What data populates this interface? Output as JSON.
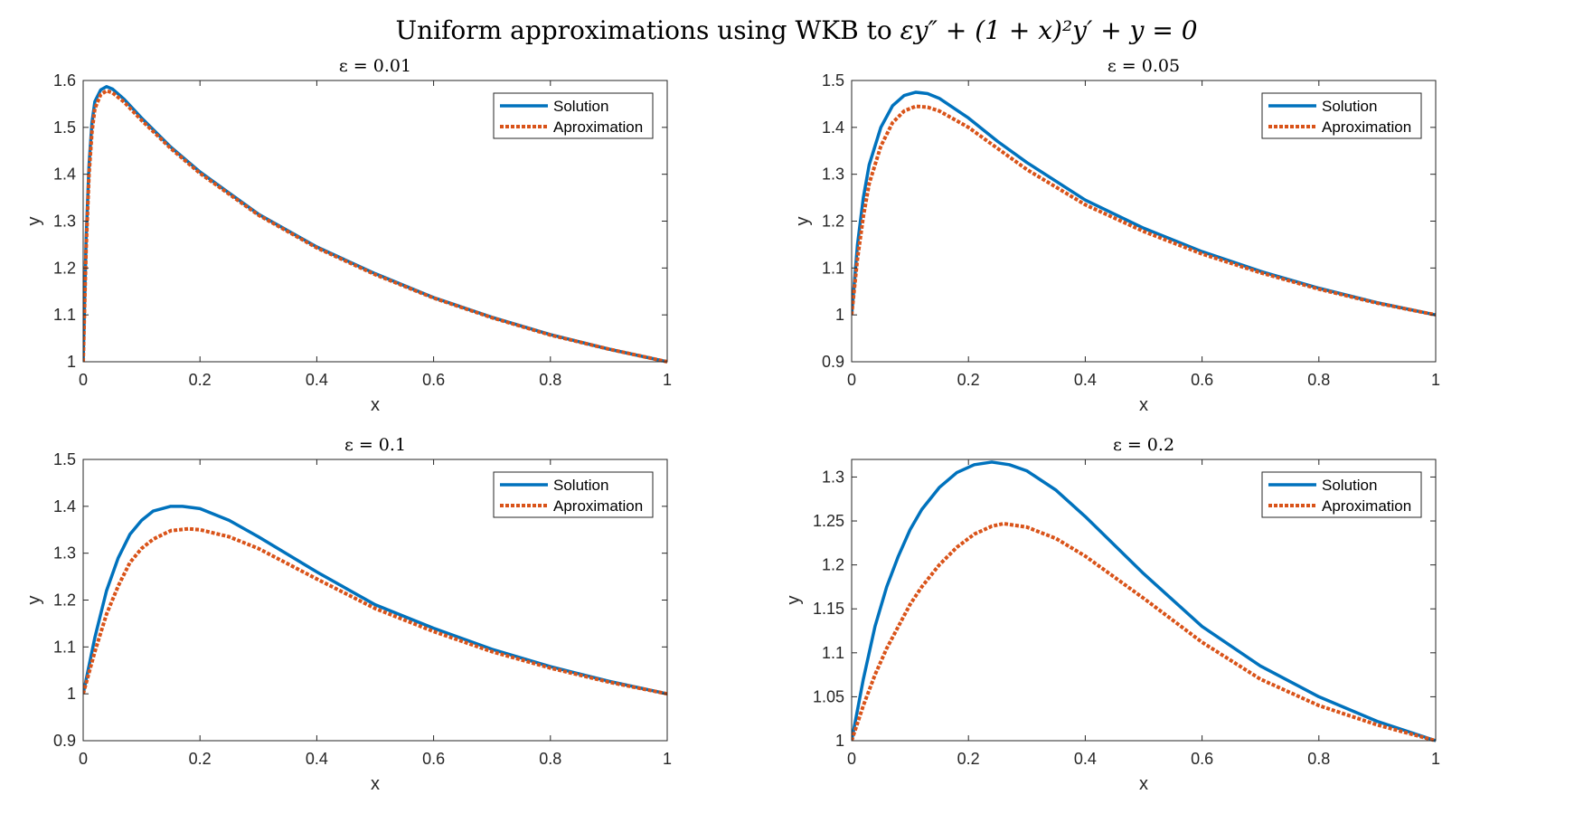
{
  "figure": {
    "title_text": "Uniform approximations using WKB to ",
    "title_math": "εy″ + (1 + x)²y′ + y = 0"
  },
  "colors": {
    "solution": "#0072BD",
    "approximation": "#D95319",
    "axis": "#262626"
  },
  "chart_data": [
    {
      "type": "line",
      "title": "ε = 0.01",
      "xlabel": "x",
      "ylabel": "y",
      "xlim": [
        0,
        1
      ],
      "ylim": [
        1,
        1.6
      ],
      "xticks": [
        0,
        0.2,
        0.4,
        0.6,
        0.8,
        1
      ],
      "xtick_labels": [
        "0",
        "0.2",
        "0.4",
        "0.6",
        "0.8",
        "1"
      ],
      "yticks": [
        1,
        1.1,
        1.2,
        1.3,
        1.4,
        1.5,
        1.6
      ],
      "ytick_labels": [
        "1",
        "1.1",
        "1.2",
        "1.3",
        "1.4",
        "1.5",
        "1.6"
      ],
      "legend": "top-right",
      "series": [
        {
          "name": "Solution",
          "style": "solid",
          "x": [
            0,
            0.005,
            0.01,
            0.015,
            0.02,
            0.03,
            0.04,
            0.05,
            0.07,
            0.1,
            0.15,
            0.2,
            0.3,
            0.4,
            0.5,
            0.6,
            0.7,
            0.8,
            0.9,
            1.0
          ],
          "y": [
            1.0,
            1.26,
            1.42,
            1.51,
            1.555,
            1.58,
            1.587,
            1.582,
            1.56,
            1.52,
            1.458,
            1.405,
            1.315,
            1.245,
            1.188,
            1.137,
            1.095,
            1.058,
            1.027,
            1.0
          ]
        },
        {
          "name": "Aproximation",
          "style": "dotted",
          "x": [
            0,
            0.005,
            0.01,
            0.015,
            0.02,
            0.03,
            0.04,
            0.05,
            0.07,
            0.1,
            0.15,
            0.2,
            0.3,
            0.4,
            0.5,
            0.6,
            0.7,
            0.8,
            0.9,
            1.0
          ],
          "y": [
            1.0,
            1.24,
            1.4,
            1.49,
            1.54,
            1.57,
            1.578,
            1.574,
            1.554,
            1.515,
            1.455,
            1.402,
            1.313,
            1.243,
            1.186,
            1.136,
            1.094,
            1.057,
            1.027,
            1.0
          ]
        }
      ]
    },
    {
      "type": "line",
      "title": "ε = 0.05",
      "xlabel": "x",
      "ylabel": "y",
      "xlim": [
        0,
        1
      ],
      "ylim": [
        0.9,
        1.5
      ],
      "xticks": [
        0,
        0.2,
        0.4,
        0.6,
        0.8,
        1
      ],
      "xtick_labels": [
        "0",
        "0.2",
        "0.4",
        "0.6",
        "0.8",
        "1"
      ],
      "yticks": [
        0.9,
        1,
        1.1,
        1.2,
        1.3,
        1.4,
        1.5
      ],
      "ytick_labels": [
        "0.9",
        "1",
        "1.1",
        "1.2",
        "1.3",
        "1.4",
        "1.5"
      ],
      "legend": "top-right",
      "series": [
        {
          "name": "Solution",
          "style": "solid",
          "x": [
            0,
            0.01,
            0.02,
            0.03,
            0.05,
            0.07,
            0.09,
            0.11,
            0.13,
            0.15,
            0.2,
            0.25,
            0.3,
            0.4,
            0.5,
            0.6,
            0.7,
            0.8,
            0.9,
            1.0
          ],
          "y": [
            1.0,
            1.15,
            1.25,
            1.32,
            1.4,
            1.446,
            1.468,
            1.475,
            1.472,
            1.462,
            1.42,
            1.37,
            1.325,
            1.245,
            1.185,
            1.135,
            1.093,
            1.057,
            1.026,
            1.0
          ]
        },
        {
          "name": "Aproximation",
          "style": "dotted",
          "x": [
            0,
            0.01,
            0.02,
            0.03,
            0.05,
            0.07,
            0.09,
            0.11,
            0.13,
            0.15,
            0.2,
            0.25,
            0.3,
            0.4,
            0.5,
            0.6,
            0.7,
            0.8,
            0.9,
            1.0
          ],
          "y": [
            1.0,
            1.12,
            1.21,
            1.28,
            1.36,
            1.41,
            1.435,
            1.445,
            1.443,
            1.435,
            1.4,
            1.355,
            1.31,
            1.235,
            1.178,
            1.13,
            1.09,
            1.055,
            1.025,
            1.0
          ]
        }
      ]
    },
    {
      "type": "line",
      "title": "ε = 0.1",
      "xlabel": "x",
      "ylabel": "y",
      "xlim": [
        0,
        1
      ],
      "ylim": [
        0.9,
        1.5
      ],
      "xticks": [
        0,
        0.2,
        0.4,
        0.6,
        0.8,
        1
      ],
      "xtick_labels": [
        "0",
        "0.2",
        "0.4",
        "0.6",
        "0.8",
        "1"
      ],
      "yticks": [
        0.9,
        1,
        1.1,
        1.2,
        1.3,
        1.4,
        1.5
      ],
      "ytick_labels": [
        "0.9",
        "1",
        "1.1",
        "1.2",
        "1.3",
        "1.4",
        "1.5"
      ],
      "legend": "top-right",
      "series": [
        {
          "name": "Solution",
          "style": "solid",
          "x": [
            0,
            0.02,
            0.04,
            0.06,
            0.08,
            0.1,
            0.12,
            0.15,
            0.17,
            0.2,
            0.25,
            0.3,
            0.4,
            0.5,
            0.6,
            0.7,
            0.8,
            0.9,
            1.0
          ],
          "y": [
            1.0,
            1.12,
            1.22,
            1.29,
            1.34,
            1.37,
            1.39,
            1.4,
            1.4,
            1.395,
            1.37,
            1.335,
            1.26,
            1.19,
            1.14,
            1.095,
            1.058,
            1.027,
            1.0
          ]
        },
        {
          "name": "Aproximation",
          "style": "dotted",
          "x": [
            0,
            0.02,
            0.04,
            0.06,
            0.08,
            0.1,
            0.12,
            0.15,
            0.18,
            0.2,
            0.25,
            0.3,
            0.4,
            0.5,
            0.6,
            0.7,
            0.8,
            0.9,
            1.0
          ],
          "y": [
            1.0,
            1.09,
            1.17,
            1.23,
            1.28,
            1.31,
            1.33,
            1.348,
            1.352,
            1.35,
            1.335,
            1.31,
            1.245,
            1.182,
            1.133,
            1.09,
            1.055,
            1.025,
            1.0
          ]
        }
      ]
    },
    {
      "type": "line",
      "title": "ε = 0.2",
      "xlabel": "x",
      "ylabel": "y",
      "xlim": [
        0,
        1
      ],
      "ylim": [
        1,
        1.32
      ],
      "xticks": [
        0,
        0.2,
        0.4,
        0.6,
        0.8,
        1
      ],
      "xtick_labels": [
        "0",
        "0.2",
        "0.4",
        "0.6",
        "0.8",
        "1"
      ],
      "yticks": [
        1,
        1.05,
        1.1,
        1.15,
        1.2,
        1.25,
        1.3
      ],
      "ytick_labels": [
        "1",
        "1.05",
        "1.1",
        "1.15",
        "1.2",
        "1.25",
        "1.3"
      ],
      "legend": "top-right",
      "series": [
        {
          "name": "Solution",
          "style": "solid",
          "x": [
            0,
            0.02,
            0.04,
            0.06,
            0.08,
            0.1,
            0.12,
            0.15,
            0.18,
            0.21,
            0.24,
            0.27,
            0.3,
            0.35,
            0.4,
            0.5,
            0.6,
            0.7,
            0.8,
            0.9,
            1.0
          ],
          "y": [
            1.0,
            1.07,
            1.13,
            1.175,
            1.21,
            1.24,
            1.263,
            1.288,
            1.305,
            1.314,
            1.317,
            1.314,
            1.307,
            1.285,
            1.255,
            1.19,
            1.13,
            1.085,
            1.05,
            1.022,
            1.0
          ]
        },
        {
          "name": "Aproximation",
          "style": "dotted",
          "x": [
            0,
            0.02,
            0.04,
            0.06,
            0.08,
            0.1,
            0.12,
            0.15,
            0.18,
            0.21,
            0.24,
            0.26,
            0.3,
            0.35,
            0.4,
            0.5,
            0.6,
            0.7,
            0.8,
            0.9,
            1.0
          ],
          "y": [
            1.0,
            1.04,
            1.075,
            1.105,
            1.13,
            1.155,
            1.175,
            1.2,
            1.22,
            1.235,
            1.244,
            1.247,
            1.243,
            1.23,
            1.21,
            1.162,
            1.112,
            1.07,
            1.04,
            1.018,
            1.0
          ]
        }
      ]
    }
  ]
}
